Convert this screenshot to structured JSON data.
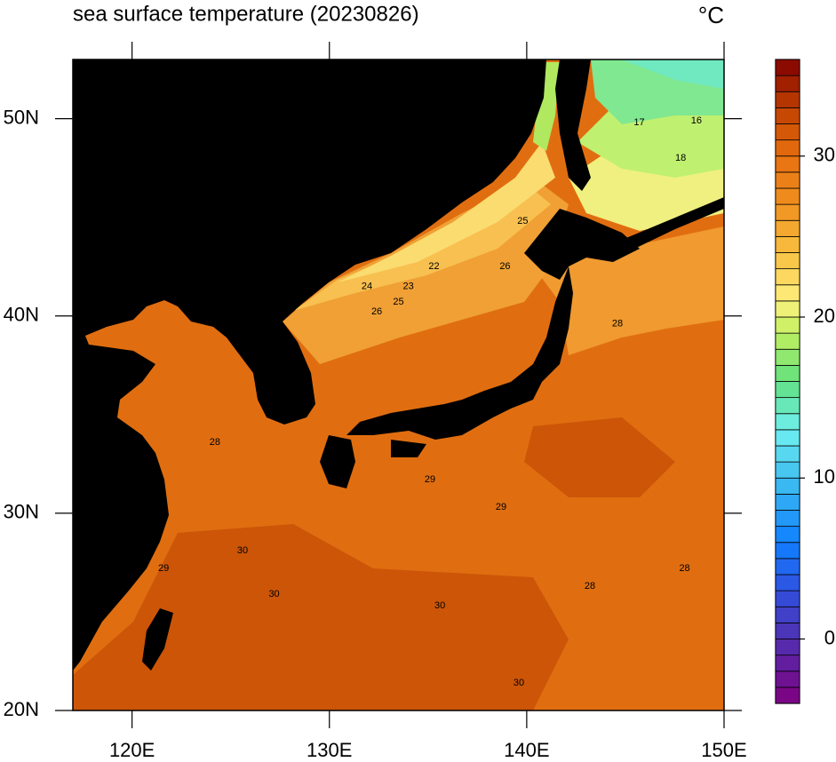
{
  "chart_data": {
    "type": "map",
    "title": "sea surface temperature (20230826)",
    "units": "°C",
    "xlim": [
      117,
      150
    ],
    "ylim": [
      20,
      53
    ],
    "xticks": [
      {
        "value": 120,
        "label": "120E"
      },
      {
        "value": 130,
        "label": "130E"
      },
      {
        "value": 140,
        "label": "140E"
      },
      {
        "value": 150,
        "label": "150E"
      }
    ],
    "yticks": [
      {
        "value": 20,
        "label": "20N"
      },
      {
        "value": 30,
        "label": "30N"
      },
      {
        "value": 40,
        "label": "40N"
      },
      {
        "value": 50,
        "label": "50N"
      }
    ],
    "colorbar": {
      "min": -4,
      "max": 36,
      "step": 1,
      "ticks": [
        0,
        10,
        20,
        30
      ],
      "stops": [
        [
          -4,
          "#800080"
        ],
        [
          0,
          "#5030b0"
        ],
        [
          3,
          "#3050e0"
        ],
        [
          6,
          "#1080ff"
        ],
        [
          10,
          "#40c0f0"
        ],
        [
          13,
          "#70f0f0"
        ],
        [
          16,
          "#60e080"
        ],
        [
          19,
          "#c0f060"
        ],
        [
          21,
          "#fff080"
        ],
        [
          24,
          "#f8c040"
        ],
        [
          27,
          "#f09020"
        ],
        [
          30,
          "#e87010"
        ],
        [
          33,
          "#c04000"
        ],
        [
          36,
          "#800000"
        ]
      ]
    },
    "contour_labels": [
      {
        "lon": 135.1,
        "lat": 31.7,
        "value": 29
      },
      {
        "lon": 138.7,
        "lat": 30.3,
        "value": 29
      },
      {
        "lon": 125.6,
        "lat": 28.1,
        "value": 30
      },
      {
        "lon": 127.2,
        "lat": 25.9,
        "value": 30
      },
      {
        "lon": 135.6,
        "lat": 25.3,
        "value": 30
      },
      {
        "lon": 139.6,
        "lat": 21.4,
        "value": 30
      },
      {
        "lon": 143.2,
        "lat": 26.3,
        "value": 28
      },
      {
        "lon": 148.0,
        "lat": 27.2,
        "value": 28
      },
      {
        "lon": 144.6,
        "lat": 39.6,
        "value": 28
      },
      {
        "lon": 131.9,
        "lat": 41.5,
        "value": 24
      },
      {
        "lon": 134.0,
        "lat": 41.5,
        "value": 23
      },
      {
        "lon": 133.5,
        "lat": 40.7,
        "value": 25
      },
      {
        "lon": 132.4,
        "lat": 40.2,
        "value": 26
      },
      {
        "lon": 138.9,
        "lat": 42.5,
        "value": 26
      },
      {
        "lon": 139.8,
        "lat": 44.8,
        "value": 25
      },
      {
        "lon": 145.7,
        "lat": 49.8,
        "value": 17
      },
      {
        "lon": 148.6,
        "lat": 49.9,
        "value": 16
      },
      {
        "lon": 147.8,
        "lat": 48.0,
        "value": 18
      },
      {
        "lon": 135.3,
        "lat": 42.5,
        "value": 22
      },
      {
        "lon": 121.6,
        "lat": 27.2,
        "value": 29
      },
      {
        "lon": 124.2,
        "lat": 33.6,
        "value": 28
      }
    ]
  }
}
